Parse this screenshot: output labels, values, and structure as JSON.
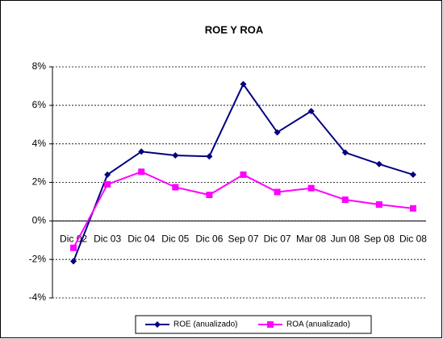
{
  "chart_data": {
    "type": "line",
    "title": "ROE Y ROA",
    "categories": [
      "Dic 02",
      "Dic 03",
      "Dic 04",
      "Dic 05",
      "Dic 06",
      "Sep 07",
      "Dic 07",
      "Mar 08",
      "Jun 08",
      "Sep 08",
      "Dic 08"
    ],
    "series": [
      {
        "name": "ROE (anualizado)",
        "color": "#000080",
        "values": [
          -2.1,
          2.4,
          3.6,
          3.4,
          3.35,
          7.1,
          4.6,
          5.7,
          3.55,
          2.95,
          2.4
        ]
      },
      {
        "name": "ROA (anualizado)",
        "color": "#ff00ff",
        "values": [
          -1.4,
          1.9,
          2.55,
          1.75,
          1.35,
          2.4,
          1.5,
          1.7,
          1.1,
          0.85,
          0.65
        ]
      }
    ],
    "ylim": [
      -4,
      8
    ],
    "yticks": [
      {
        "value": -4,
        "label": "-4%"
      },
      {
        "value": -2,
        "label": "-2%"
      },
      {
        "value": 0,
        "label": "0%"
      },
      {
        "value": 2,
        "label": "2%"
      },
      {
        "value": 4,
        "label": "4%"
      },
      {
        "value": 6,
        "label": "6%"
      },
      {
        "value": 8,
        "label": "8%"
      }
    ],
    "grid": true,
    "legend": "bottom"
  }
}
